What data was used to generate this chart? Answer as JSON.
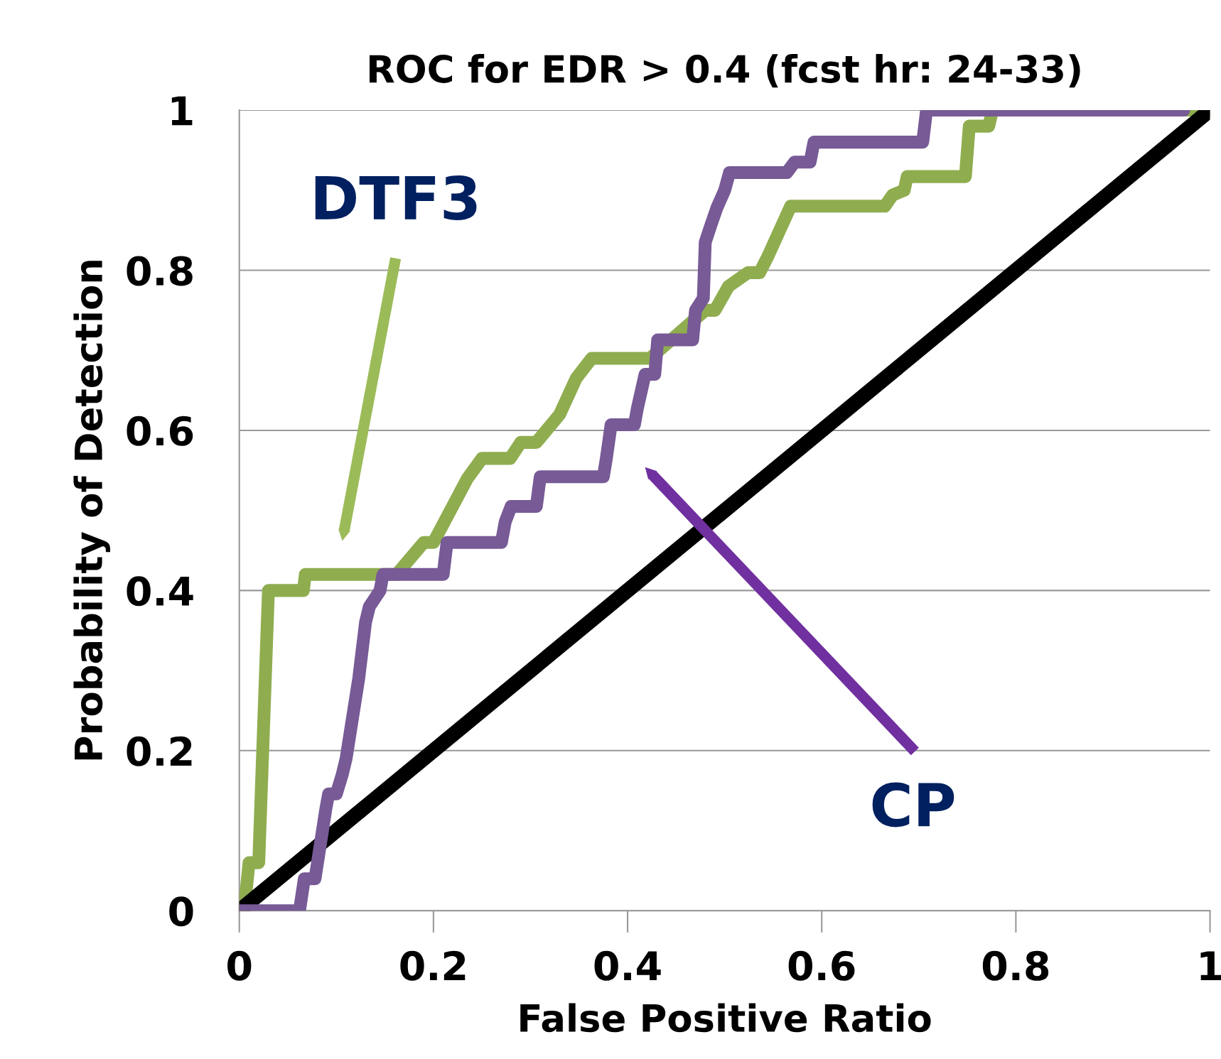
{
  "chart_data": {
    "type": "line",
    "title": "ROC for EDR > 0.4 (fcst hr: 24-33)",
    "xlabel": "False Positive Ratio",
    "ylabel": "Probability of Detection",
    "series": [
      {
        "color": "#8fad4f",
        "x": [
          0.005,
          0.01,
          0.02,
          0.03,
          0.066,
          0.068,
          0.162,
          0.19,
          0.2,
          0.235,
          0.25,
          0.279,
          0.29,
          0.306,
          0.33,
          0.347,
          0.363,
          0.423,
          0.48,
          0.49,
          0.504,
          0.524,
          0.536,
          0.544,
          0.568,
          0.665,
          0.673,
          0.685,
          0.688,
          0.748,
          0.752,
          0.772,
          0.776,
          1.0
        ],
        "values": [
          0.0,
          0.06,
          0.06,
          0.4,
          0.4,
          0.42,
          0.42,
          0.46,
          0.46,
          0.54,
          0.565,
          0.565,
          0.585,
          0.585,
          0.62,
          0.665,
          0.69,
          0.69,
          0.75,
          0.75,
          0.78,
          0.797,
          0.797,
          0.816,
          0.88,
          0.88,
          0.894,
          0.9,
          0.917,
          0.917,
          0.98,
          0.98,
          1.0,
          1.0
        ]
      },
      {
        "color": "#775a96",
        "x": [
          0.0,
          0.062,
          0.067,
          0.078,
          0.089,
          0.092,
          0.1,
          0.106,
          0.11,
          0.12,
          0.123,
          0.13,
          0.134,
          0.145,
          0.148,
          0.21,
          0.214,
          0.27,
          0.274,
          0.28,
          0.306,
          0.31,
          0.375,
          0.378,
          0.383,
          0.407,
          0.41,
          0.418,
          0.428,
          0.431,
          0.467,
          0.47,
          0.478,
          0.48,
          0.486,
          0.492,
          0.5,
          0.505,
          0.564,
          0.572,
          0.588,
          0.592,
          0.704,
          0.708,
          0.973
        ],
        "values": [
          0.0,
          0.0,
          0.04,
          0.04,
          0.126,
          0.146,
          0.146,
          0.17,
          0.19,
          0.267,
          0.29,
          0.36,
          0.38,
          0.4,
          0.42,
          0.42,
          0.46,
          0.46,
          0.486,
          0.505,
          0.505,
          0.542,
          0.542,
          0.564,
          0.607,
          0.607,
          0.627,
          0.67,
          0.67,
          0.713,
          0.713,
          0.75,
          0.765,
          0.835,
          0.857,
          0.878,
          0.9,
          0.922,
          0.922,
          0.935,
          0.935,
          0.96,
          0.96,
          1.0,
          1.0
        ]
      },
      {
        "color": "#000000",
        "x": [
          0.0,
          1.0
        ],
        "values": [
          0.0,
          1.0
        ]
      }
    ],
    "annotations": [
      "DTF3",
      "CP"
    ],
    "xlim": [
      0,
      1
    ],
    "ylim": [
      0,
      1
    ],
    "xticks": [
      0,
      0.2,
      0.4,
      0.6,
      0.8,
      1
    ],
    "yticks": [
      0,
      0.2,
      0.4,
      0.6,
      0.8,
      1
    ],
    "grid": "y"
  }
}
